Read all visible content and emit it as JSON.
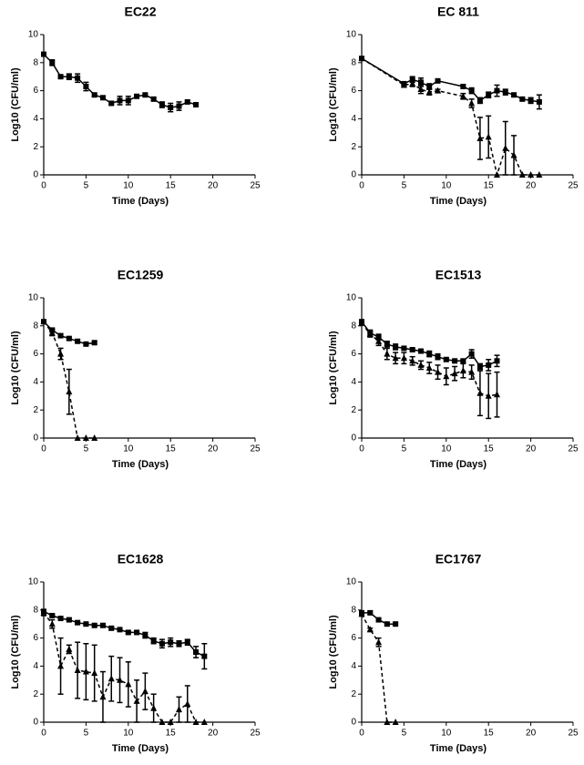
{
  "chart_data": [
    {
      "type": "line",
      "title": "EC22",
      "x_label": "Time (Days)",
      "y_label": "Log10 (CFU/ml)",
      "xlim": [
        0,
        25
      ],
      "xticks": [
        0,
        5,
        10,
        15,
        20,
        25
      ],
      "ylim": [
        0,
        10
      ],
      "yticks": [
        0,
        2,
        4,
        6,
        8,
        10
      ],
      "series": [
        {
          "line_style": "solid",
          "marker": "square",
          "color": "#000000",
          "x": [
            0,
            1,
            2,
            3,
            4,
            5,
            6,
            7,
            8,
            9,
            10,
            11,
            12,
            13,
            14,
            15,
            16,
            17,
            18
          ],
          "values": [
            8.6,
            8.0,
            7.0,
            7.0,
            6.9,
            6.3,
            5.7,
            5.5,
            5.1,
            5.3,
            5.3,
            5.6,
            5.7,
            5.4,
            5.0,
            4.8,
            4.9,
            5.2,
            5.0
          ],
          "errors": [
            0.1,
            0.2,
            0.1,
            0.2,
            0.3,
            0.3,
            0.1,
            0.1,
            0.1,
            0.3,
            0.3,
            0.1,
            0.1,
            0.1,
            0.2,
            0.3,
            0.3,
            0.1,
            0.1
          ]
        }
      ]
    },
    {
      "type": "line",
      "title": "EC 811",
      "x_label": "Time (Days)",
      "y_label": "Log10 (CFU/ml)",
      "xlim": [
        0,
        25
      ],
      "xticks": [
        0,
        5,
        10,
        15,
        20,
        25
      ],
      "ylim": [
        0,
        10
      ],
      "yticks": [
        0,
        2,
        4,
        6,
        8,
        10
      ],
      "series": [
        {
          "line_style": "solid",
          "marker": "square",
          "color": "#000000",
          "x": [
            0,
            5,
            6,
            7,
            8,
            9,
            12,
            13,
            14,
            15,
            16,
            17,
            18,
            19,
            20,
            21
          ],
          "values": [
            8.3,
            6.5,
            6.8,
            6.6,
            6.3,
            6.7,
            6.3,
            6.0,
            5.3,
            5.7,
            6.0,
            5.9,
            5.7,
            5.4,
            5.3,
            5.2
          ],
          "errors": [
            0.1,
            0.1,
            0.2,
            0.3,
            0.2,
            0.1,
            0.1,
            0.2,
            0.2,
            0.2,
            0.4,
            0.2,
            0.1,
            0.1,
            0.2,
            0.5
          ]
        },
        {
          "line_style": "dashed",
          "marker": "triangle",
          "color": "#000000",
          "x": [
            0,
            5,
            6,
            7,
            8,
            9,
            12,
            13,
            14,
            15,
            16,
            17,
            18,
            19,
            20,
            21
          ],
          "values": [
            8.3,
            6.4,
            6.5,
            6.1,
            5.9,
            6.0,
            5.6,
            5.1,
            2.6,
            2.7,
            0,
            1.9,
            1.4,
            0,
            0,
            0
          ],
          "errors": [
            0.1,
            0.1,
            0.2,
            0.3,
            0.2,
            0.1,
            0.2,
            0.3,
            1.5,
            1.5,
            0,
            1.9,
            1.4,
            0,
            0,
            0
          ]
        }
      ]
    },
    {
      "type": "line",
      "title": "EC1259",
      "x_label": "Time (Days)",
      "y_label": "Log10 (CFU/ml)",
      "xlim": [
        0,
        25
      ],
      "xticks": [
        0,
        5,
        10,
        15,
        20,
        25
      ],
      "ylim": [
        0,
        10
      ],
      "yticks": [
        0,
        2,
        4,
        6,
        8,
        10
      ],
      "series": [
        {
          "line_style": "solid",
          "marker": "square",
          "color": "#000000",
          "x": [
            0,
            1,
            2,
            3,
            4,
            5,
            6
          ],
          "values": [
            8.3,
            7.7,
            7.3,
            7.1,
            6.9,
            6.7,
            6.8
          ],
          "errors": [
            0.1,
            0.1,
            0.1,
            0.1,
            0.1,
            0.1,
            0.1
          ]
        },
        {
          "line_style": "dashed",
          "marker": "triangle",
          "color": "#000000",
          "x": [
            0,
            1,
            2,
            3,
            4,
            5,
            6
          ],
          "values": [
            8.3,
            7.5,
            6.0,
            3.3,
            0,
            0,
            0
          ],
          "errors": [
            0.1,
            0.2,
            0.4,
            1.6,
            0,
            0,
            0
          ]
        }
      ]
    },
    {
      "type": "line",
      "title": "EC1513",
      "x_label": "Time (Days)",
      "y_label": "Log10 (CFU/ml)",
      "xlim": [
        0,
        25
      ],
      "xticks": [
        0,
        5,
        10,
        15,
        20,
        25
      ],
      "ylim": [
        0,
        10
      ],
      "yticks": [
        0,
        2,
        4,
        6,
        8,
        10
      ],
      "series": [
        {
          "line_style": "solid",
          "marker": "square",
          "color": "#000000",
          "x": [
            0,
            1,
            2,
            3,
            4,
            5,
            6,
            7,
            8,
            9,
            10,
            11,
            12,
            13,
            14,
            15,
            16
          ],
          "values": [
            8.3,
            7.5,
            7.2,
            6.7,
            6.5,
            6.4,
            6.3,
            6.2,
            6.0,
            5.8,
            5.6,
            5.5,
            5.5,
            6.0,
            5.1,
            5.2,
            5.5
          ],
          "errors": [
            0.1,
            0.2,
            0.2,
            0.2,
            0.2,
            0.1,
            0.1,
            0.1,
            0.2,
            0.2,
            0.1,
            0.1,
            0.1,
            0.3,
            0.2,
            0.4,
            0.4
          ]
        },
        {
          "line_style": "dashed",
          "marker": "triangle",
          "color": "#000000",
          "x": [
            0,
            1,
            2,
            3,
            4,
            5,
            6,
            7,
            8,
            9,
            10,
            11,
            12,
            13,
            14,
            15,
            16
          ],
          "values": [
            8.2,
            7.4,
            6.9,
            6.0,
            5.7,
            5.7,
            5.5,
            5.2,
            5.0,
            4.7,
            4.4,
            4.6,
            4.8,
            4.7,
            3.2,
            3.0,
            3.1
          ],
          "errors": [
            0.1,
            0.2,
            0.3,
            0.4,
            0.4,
            0.4,
            0.3,
            0.3,
            0.4,
            0.5,
            0.6,
            0.5,
            0.5,
            0.5,
            1.6,
            1.6,
            1.6
          ]
        }
      ]
    },
    {
      "type": "line",
      "title": "EC1628",
      "x_label": "Time (Days)",
      "y_label": "Log10 (CFU/ml)",
      "xlim": [
        0,
        25
      ],
      "xticks": [
        0,
        5,
        10,
        15,
        20,
        25
      ],
      "ylim": [
        0,
        10
      ],
      "yticks": [
        0,
        2,
        4,
        6,
        8,
        10
      ],
      "series": [
        {
          "line_style": "solid",
          "marker": "square",
          "color": "#000000",
          "x": [
            0,
            1,
            2,
            3,
            4,
            5,
            6,
            7,
            8,
            9,
            10,
            11,
            12,
            13,
            14,
            15,
            16,
            17,
            18,
            19
          ],
          "values": [
            7.9,
            7.6,
            7.4,
            7.3,
            7.1,
            7.0,
            6.9,
            6.9,
            6.7,
            6.6,
            6.4,
            6.4,
            6.2,
            5.8,
            5.6,
            5.7,
            5.6,
            5.7,
            5.0,
            4.7
          ],
          "errors": [
            0.1,
            0.1,
            0.1,
            0.1,
            0.1,
            0.1,
            0.1,
            0.1,
            0.1,
            0.1,
            0.1,
            0.1,
            0.2,
            0.2,
            0.3,
            0.3,
            0.2,
            0.2,
            0.4,
            0.9
          ]
        },
        {
          "line_style": "dashed",
          "marker": "triangle",
          "color": "#000000",
          "x": [
            0,
            1,
            2,
            3,
            4,
            5,
            6,
            7,
            8,
            9,
            10,
            11,
            12,
            13,
            14,
            15,
            16,
            17,
            18,
            19
          ],
          "values": [
            7.8,
            7.0,
            4.0,
            5.2,
            3.7,
            3.6,
            3.5,
            1.8,
            3.1,
            3.0,
            2.7,
            1.5,
            2.2,
            1.0,
            0,
            0,
            0.9,
            1.3,
            0,
            0
          ],
          "errors": [
            0.2,
            0.3,
            2.0,
            0.3,
            2.0,
            2.0,
            2.0,
            1.8,
            1.6,
            1.6,
            1.6,
            1.5,
            1.3,
            1.0,
            0,
            0,
            0.9,
            1.3,
            0,
            0
          ]
        }
      ]
    },
    {
      "type": "line",
      "title": "EC1767",
      "x_label": "Time (Days)",
      "y_label": "Log10 (CFU/ml)",
      "xlim": [
        0,
        25
      ],
      "xticks": [
        0,
        5,
        10,
        15,
        20,
        25
      ],
      "ylim": [
        0,
        10
      ],
      "yticks": [
        0,
        2,
        4,
        6,
        8,
        10
      ],
      "series": [
        {
          "line_style": "solid",
          "marker": "square",
          "color": "#000000",
          "x": [
            0,
            1,
            2,
            3,
            4
          ],
          "values": [
            7.8,
            7.8,
            7.3,
            7.0,
            7.0
          ],
          "errors": [
            0.1,
            0.1,
            0.1,
            0.1,
            0.1
          ]
        },
        {
          "line_style": "dashed",
          "marker": "triangle",
          "color": "#000000",
          "x": [
            0,
            1,
            2,
            3,
            4
          ],
          "values": [
            7.7,
            6.6,
            5.7,
            0,
            0
          ],
          "errors": [
            0.1,
            0.1,
            0.3,
            0,
            0
          ]
        }
      ]
    }
  ]
}
